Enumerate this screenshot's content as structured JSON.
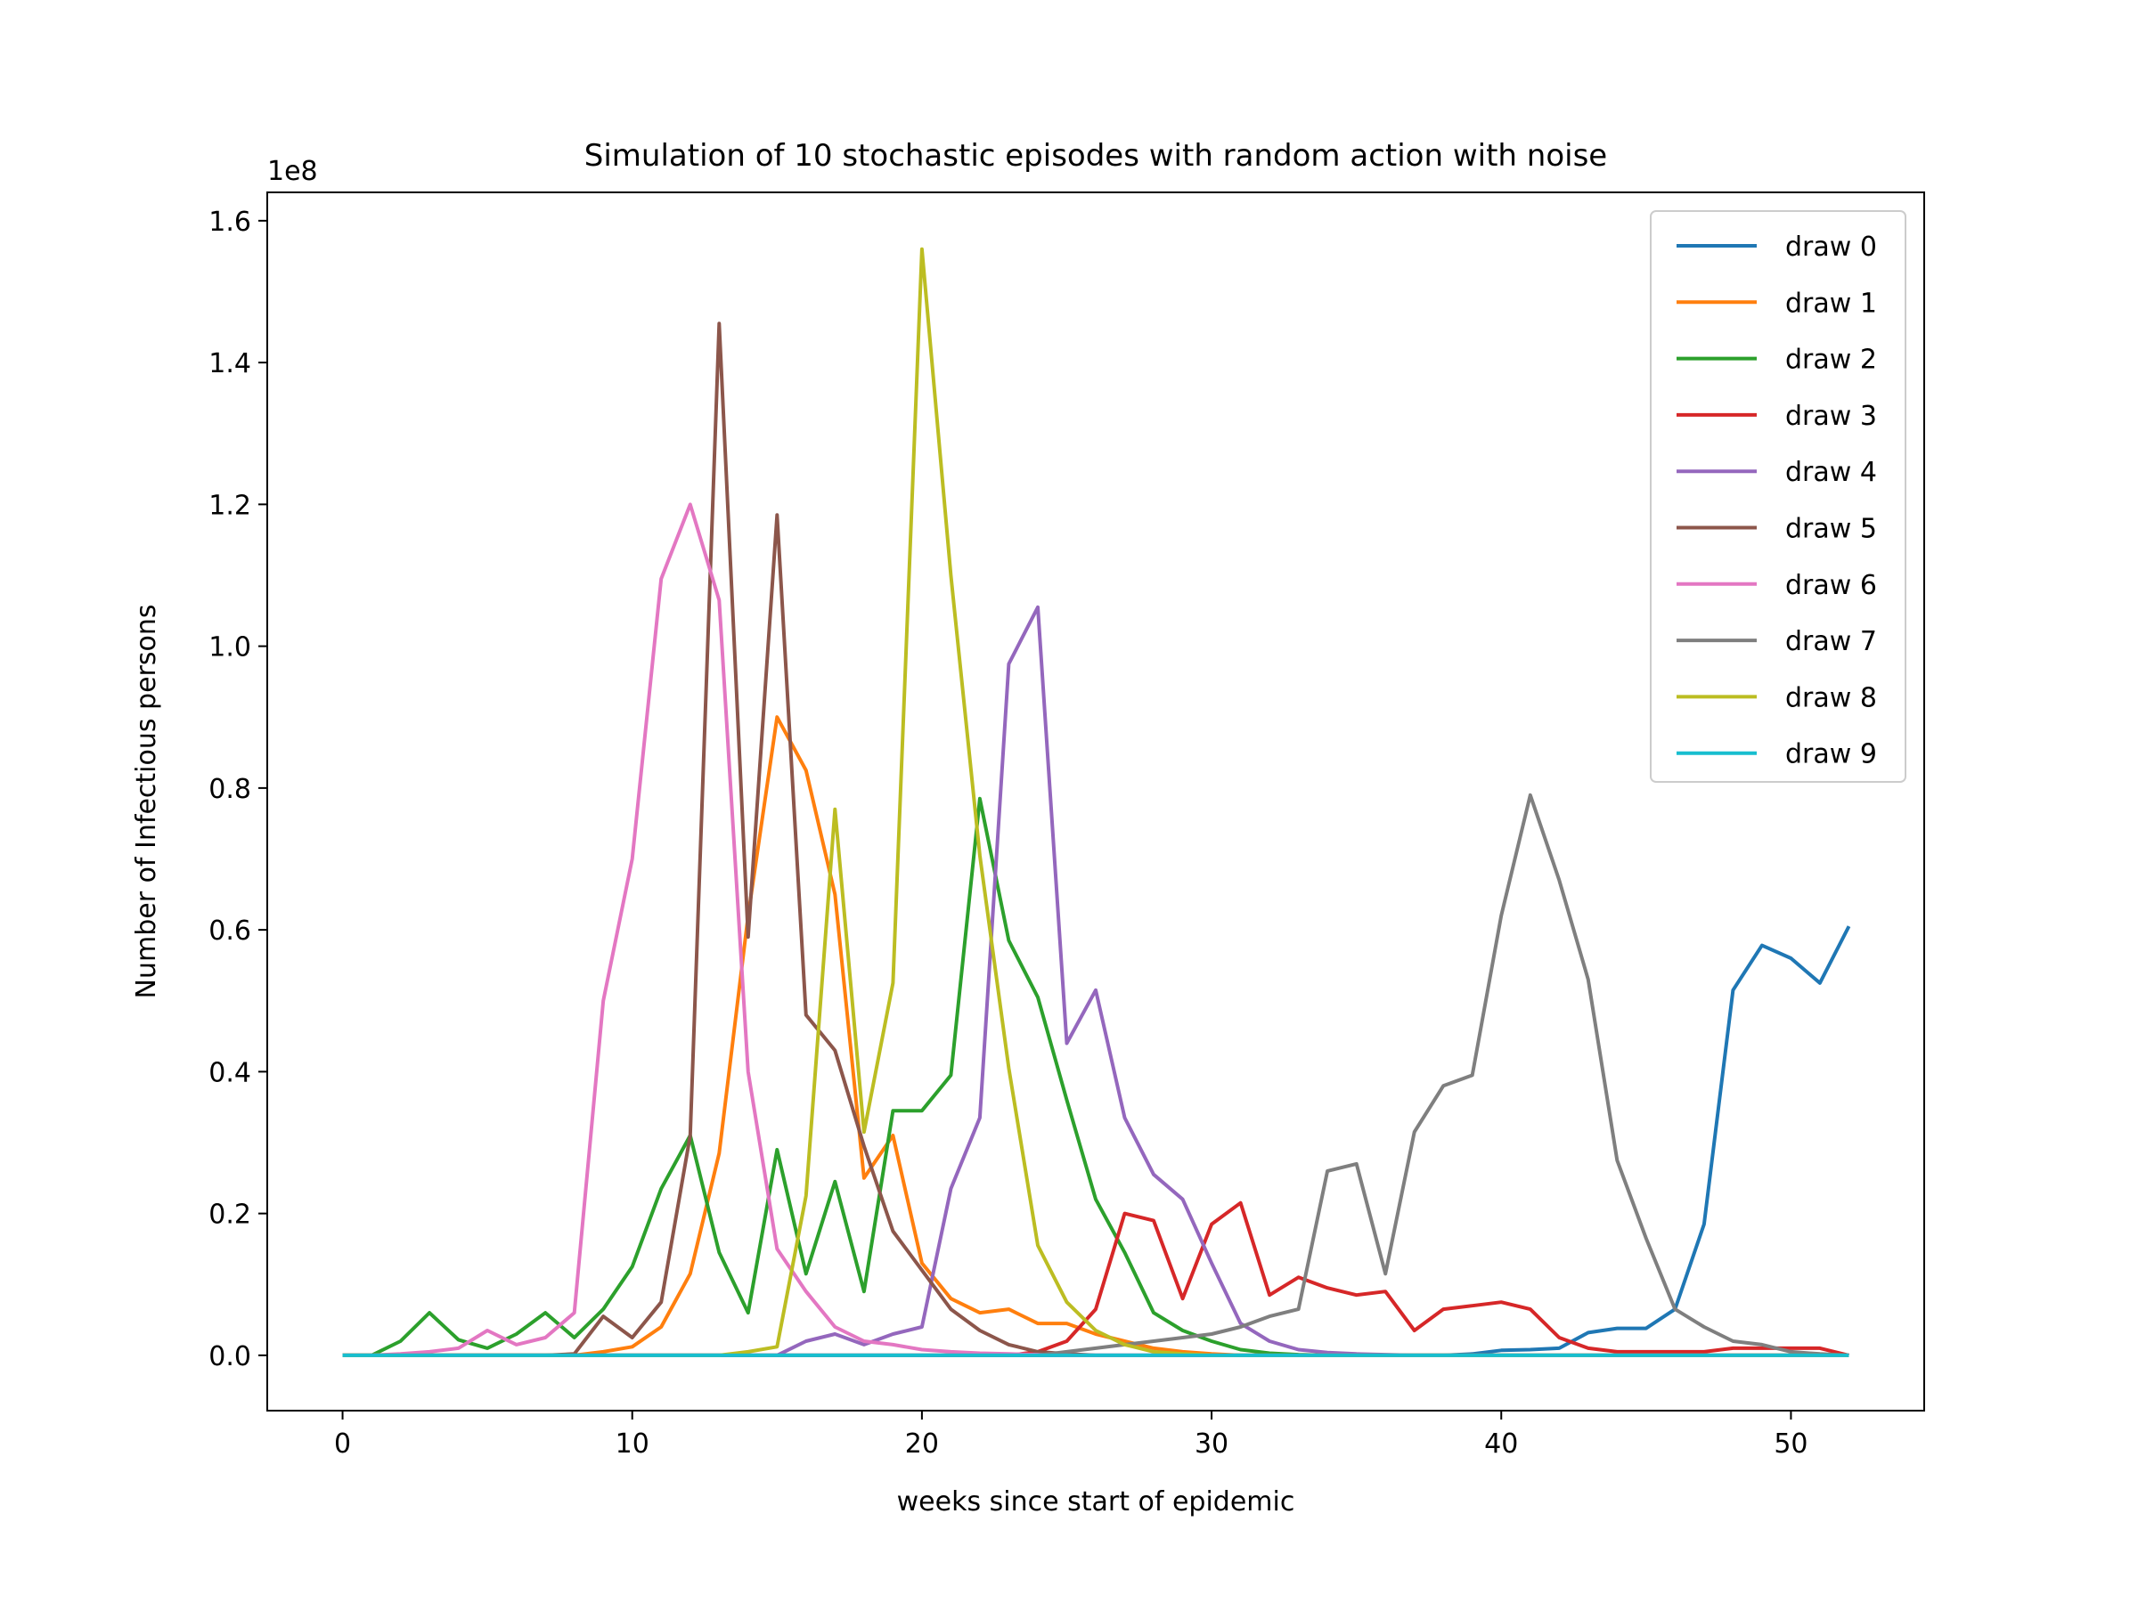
{
  "chart_data": {
    "type": "line",
    "title": "Simulation of 10 stochastic episodes with random action with noise",
    "xlabel": "weeks since start of epidemic",
    "ylabel": "Number of Infectious persons",
    "y_scale_label": "1e8",
    "xlim": [
      -2.6,
      54.6
    ],
    "ylim": [
      -0.078,
      1.64
    ],
    "xticks": [
      0,
      10,
      20,
      30,
      40,
      50
    ],
    "yticks": [
      0.0,
      0.2,
      0.4,
      0.6,
      0.8,
      1.0,
      1.2,
      1.4,
      1.6
    ],
    "ytick_labels": [
      "0.0",
      "0.2",
      "0.4",
      "0.6",
      "0.8",
      "1.0",
      "1.2",
      "1.4",
      "1.6"
    ],
    "legend_position": "top-right",
    "grid": false,
    "x": [
      0,
      1,
      2,
      3,
      4,
      5,
      6,
      7,
      8,
      9,
      10,
      11,
      12,
      13,
      14,
      15,
      16,
      17,
      18,
      19,
      20,
      21,
      22,
      23,
      24,
      25,
      26,
      27,
      28,
      29,
      30,
      31,
      32,
      33,
      34,
      35,
      36,
      37,
      38,
      39,
      40,
      41,
      42,
      43,
      44,
      45,
      46,
      47,
      48,
      49,
      50,
      51,
      52
    ],
    "series": [
      {
        "name": "draw 0",
        "color": "#1f77b4",
        "values": [
          0,
          0,
          0,
          0,
          0,
          0,
          0,
          0,
          0,
          0,
          0,
          0,
          0,
          0,
          0,
          0,
          0,
          0,
          0,
          0,
          0,
          0,
          0,
          0,
          0,
          0,
          0,
          0,
          0,
          0,
          0,
          0,
          0,
          0,
          0,
          0,
          0,
          0,
          0,
          0.002,
          0.007,
          0.008,
          0.01,
          0.032,
          0.038,
          0.038,
          0.065,
          0.185,
          0.515,
          0.578,
          0.56,
          0.525,
          0.605
        ]
      },
      {
        "name": "draw 1",
        "color": "#ff7f0e",
        "values": [
          0,
          0,
          0,
          0,
          0,
          0,
          0,
          0,
          0,
          0.005,
          0.012,
          0.04,
          0.115,
          0.285,
          0.62,
          0.9,
          0.825,
          0.65,
          0.25,
          0.31,
          0.13,
          0.08,
          0.06,
          0.065,
          0.045,
          0.045,
          0.03,
          0.02,
          0.01,
          0.005,
          0.002,
          0,
          0,
          0,
          0,
          0,
          0,
          0,
          0,
          0,
          0,
          0,
          0,
          0,
          0,
          0,
          0,
          0,
          0,
          0,
          0,
          0,
          0
        ]
      },
      {
        "name": "draw 2",
        "color": "#2ca02c",
        "values": [
          0,
          0,
          0.02,
          0.06,
          0.022,
          0.01,
          0.03,
          0.06,
          0.025,
          0.065,
          0.125,
          0.235,
          0.31,
          0.145,
          0.06,
          0.29,
          0.115,
          0.245,
          0.09,
          0.345,
          0.345,
          0.395,
          0.785,
          0.585,
          0.505,
          0.36,
          0.22,
          0.145,
          0.06,
          0.035,
          0.02,
          0.008,
          0.003,
          0.001,
          0,
          0,
          0,
          0,
          0,
          0,
          0,
          0,
          0,
          0,
          0,
          0,
          0,
          0,
          0,
          0,
          0,
          0,
          0
        ]
      },
      {
        "name": "draw 3",
        "color": "#d62728",
        "values": [
          0,
          0,
          0,
          0,
          0,
          0,
          0,
          0,
          0,
          0,
          0,
          0,
          0,
          0,
          0,
          0,
          0,
          0,
          0,
          0,
          0,
          0,
          0,
          0,
          0.005,
          0.02,
          0.065,
          0.2,
          0.19,
          0.08,
          0.185,
          0.215,
          0.085,
          0.11,
          0.095,
          0.085,
          0.09,
          0.035,
          0.065,
          0.07,
          0.075,
          0.065,
          0.025,
          0.01,
          0.005,
          0.005,
          0.005,
          0.005,
          0.01,
          0.01,
          0.01,
          0.01,
          0
        ]
      },
      {
        "name": "draw 4",
        "color": "#9467bd",
        "values": [
          0,
          0,
          0,
          0,
          0,
          0,
          0,
          0,
          0,
          0,
          0,
          0,
          0,
          0,
          0,
          0,
          0.02,
          0.03,
          0.015,
          0.03,
          0.04,
          0.235,
          0.335,
          0.975,
          1.055,
          0.44,
          0.515,
          0.335,
          0.255,
          0.22,
          0.13,
          0.045,
          0.02,
          0.008,
          0.004,
          0.002,
          0.001,
          0,
          0,
          0,
          0,
          0,
          0,
          0,
          0,
          0,
          0,
          0,
          0,
          0,
          0,
          0,
          0
        ]
      },
      {
        "name": "draw 5",
        "color": "#8c564b",
        "values": [
          0,
          0,
          0,
          0,
          0,
          0,
          0,
          0,
          0.002,
          0.055,
          0.025,
          0.075,
          0.31,
          1.455,
          0.59,
          1.185,
          0.48,
          0.43,
          0.295,
          0.175,
          0.12,
          0.065,
          0.035,
          0.015,
          0.005,
          0.002,
          0,
          0,
          0,
          0,
          0,
          0,
          0,
          0,
          0,
          0,
          0,
          0,
          0,
          0,
          0,
          0,
          0,
          0,
          0,
          0,
          0,
          0,
          0,
          0,
          0,
          0,
          0
        ]
      },
      {
        "name": "draw 6",
        "color": "#e377c2",
        "values": [
          0,
          0,
          0.002,
          0.005,
          0.01,
          0.035,
          0.015,
          0.025,
          0.06,
          0.5,
          0.7,
          1.095,
          1.2,
          1.065,
          0.4,
          0.15,
          0.09,
          0.04,
          0.02,
          0.015,
          0.008,
          0.005,
          0.003,
          0.002,
          0.001,
          0,
          0,
          0,
          0,
          0,
          0,
          0,
          0,
          0,
          0,
          0,
          0,
          0,
          0,
          0,
          0,
          0,
          0,
          0,
          0,
          0,
          0,
          0,
          0,
          0,
          0,
          0,
          0
        ]
      },
      {
        "name": "draw 7",
        "color": "#7f7f7f",
        "values": [
          0,
          0,
          0,
          0,
          0,
          0,
          0,
          0,
          0,
          0,
          0,
          0,
          0,
          0,
          0,
          0,
          0,
          0,
          0,
          0,
          0,
          0,
          0,
          0,
          0,
          0.005,
          0.01,
          0.015,
          0.02,
          0.025,
          0.03,
          0.04,
          0.055,
          0.065,
          0.26,
          0.27,
          0.115,
          0.315,
          0.38,
          0.395,
          0.62,
          0.79,
          0.67,
          0.53,
          0.275,
          0.165,
          0.065,
          0.04,
          0.02,
          0.015,
          0.005,
          0.002,
          0
        ]
      },
      {
        "name": "draw 8",
        "color": "#bcbd22",
        "values": [
          0,
          0,
          0,
          0,
          0,
          0,
          0,
          0,
          0,
          0,
          0,
          0,
          0,
          0,
          0.005,
          0.012,
          0.225,
          0.77,
          0.315,
          0.525,
          1.56,
          1.1,
          0.705,
          0.405,
          0.155,
          0.075,
          0.035,
          0.015,
          0.005,
          0.002,
          0,
          0,
          0,
          0,
          0,
          0,
          0,
          0,
          0,
          0,
          0,
          0,
          0,
          0,
          0,
          0,
          0,
          0,
          0,
          0,
          0,
          0,
          0
        ]
      },
      {
        "name": "draw 9",
        "color": "#17becf",
        "values": [
          0,
          0,
          0,
          0,
          0,
          0,
          0,
          0,
          0,
          0,
          0,
          0,
          0,
          0,
          0,
          0,
          0,
          0,
          0,
          0,
          0,
          0,
          0,
          0,
          0,
          0,
          0,
          0,
          0,
          0,
          0,
          0,
          0,
          0,
          0,
          0,
          0,
          0,
          0,
          0,
          0,
          0,
          0,
          0,
          0,
          0,
          0,
          0,
          0,
          0,
          0,
          0,
          0
        ]
      }
    ]
  }
}
